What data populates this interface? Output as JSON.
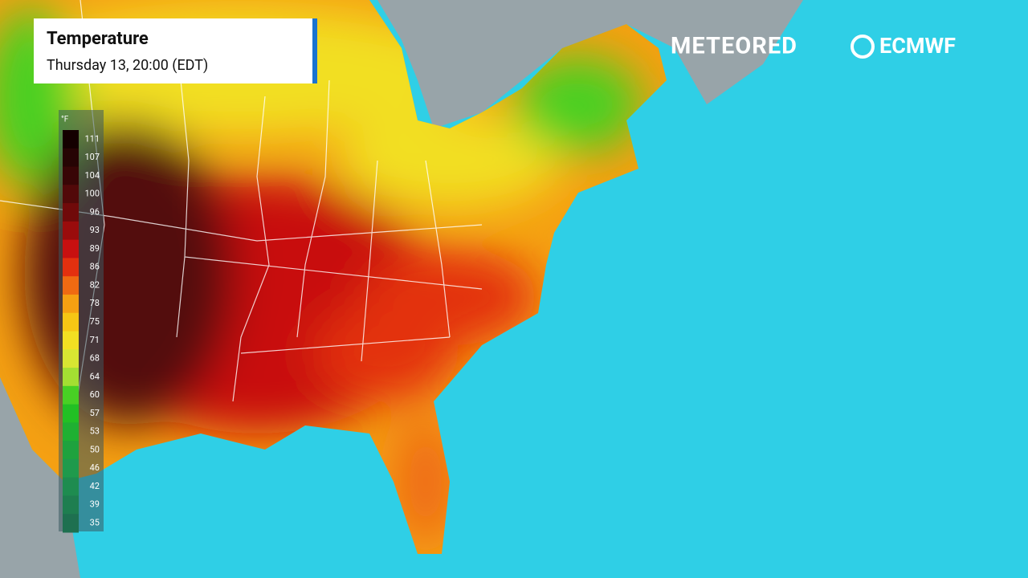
{
  "header": {
    "title": "Temperature",
    "subtitle": "Thursday 13, 20:00 (EDT)"
  },
  "brands": [
    "METEORED",
    "ECMWF"
  ],
  "legend": {
    "unit": "°F",
    "labels": [
      111,
      107,
      104,
      100,
      96,
      93,
      89,
      86,
      82,
      78,
      75,
      71,
      68,
      64,
      60,
      57,
      53,
      50,
      46,
      42,
      39,
      35
    ],
    "colors": [
      "#140000",
      "#260404",
      "#380606",
      "#520909",
      "#700a0a",
      "#9a0c0c",
      "#c81010",
      "#e3300f",
      "#ef6a12",
      "#f5a012",
      "#f6c614",
      "#f2df22",
      "#d8e632",
      "#a4df32",
      "#48d024",
      "#22c024",
      "#1fb032",
      "#1fa23e",
      "#1f9a4c",
      "#1e8c50",
      "#1e7e50",
      "#1e7050"
    ]
  }
}
